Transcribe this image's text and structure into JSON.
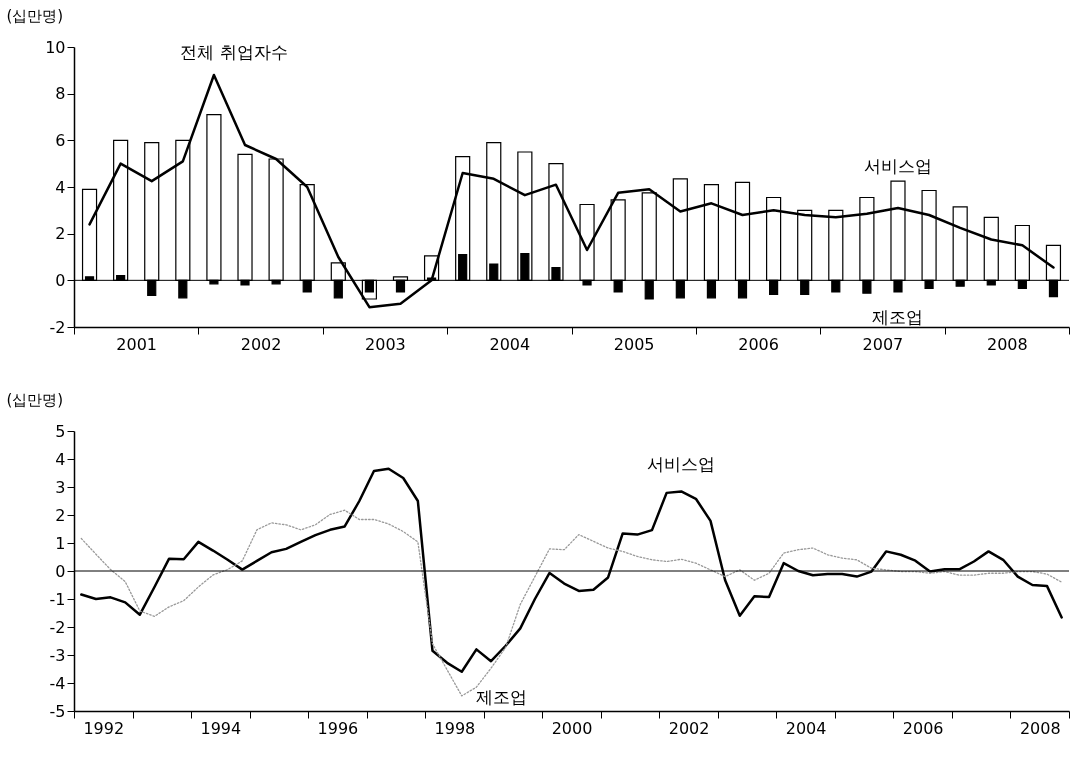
{
  "chart_data": [
    {
      "type": "bar",
      "ylabel": "(십만명)",
      "x": [
        2001.125,
        2001.375,
        2001.625,
        2001.875,
        2002.125,
        2002.375,
        2002.625,
        2002.875,
        2003.125,
        2003.375,
        2003.625,
        2003.875,
        2004.125,
        2004.375,
        2004.625,
        2004.875,
        2005.125,
        2005.375,
        2005.625,
        2005.875,
        2006.125,
        2006.375,
        2006.625,
        2006.875,
        2007.125,
        2007.375,
        2007.625,
        2007.875,
        2008.125,
        2008.375,
        2008.625,
        2008.875
      ],
      "xlim": [
        2001,
        2009
      ],
      "xticks": [
        {
          "value": 2001,
          "label": null
        },
        {
          "value": 2001.5,
          "label": "2001"
        },
        {
          "value": 2002,
          "label": null
        },
        {
          "value": 2002.5,
          "label": "2002"
        },
        {
          "value": 2003,
          "label": null
        },
        {
          "value": 2003.5,
          "label": "2003"
        },
        {
          "value": 2004,
          "label": null
        },
        {
          "value": 2004.5,
          "label": "2004"
        },
        {
          "value": 2005,
          "label": null
        },
        {
          "value": 2005.5,
          "label": "2005"
        },
        {
          "value": 2006,
          "label": null
        },
        {
          "value": 2006.5,
          "label": "2006"
        },
        {
          "value": 2007,
          "label": null
        },
        {
          "value": 2007.5,
          "label": "2007"
        },
        {
          "value": 2008,
          "label": null
        },
        {
          "value": 2008.5,
          "label": "2008"
        },
        {
          "value": 2009,
          "label": null
        }
      ],
      "ylim": [
        -2,
        10
      ],
      "yticks": [
        -2,
        0,
        2,
        4,
        6,
        8,
        10
      ],
      "ref_lines": [
        {
          "axis": "y",
          "value": 0
        }
      ],
      "series": [
        {
          "name": "서비스업",
          "color": "#ffffff",
          "values": [
            3.9,
            6.0,
            5.9,
            6.0,
            7.1,
            5.4,
            5.2,
            4.1,
            0.75,
            -0.8,
            0.15,
            1.05,
            5.3,
            5.9,
            5.5,
            5.0,
            3.25,
            3.45,
            3.75,
            4.35,
            4.1,
            4.2,
            3.55,
            3.0,
            3.0,
            3.55,
            4.25,
            3.85,
            3.15,
            2.7,
            2.35,
            1.5
          ]
        },
        {
          "name": "제조업",
          "color": "#000000",
          "values": [
            0.15,
            0.2,
            -0.65,
            -0.75,
            -0.15,
            -0.2,
            -0.15,
            -0.5,
            -0.75,
            -0.5,
            -0.5,
            0.1,
            1.1,
            0.7,
            1.15,
            0.55,
            -0.2,
            -0.5,
            -0.8,
            -0.75,
            -0.75,
            -0.75,
            -0.6,
            -0.6,
            -0.5,
            -0.55,
            -0.5,
            -0.35,
            -0.25,
            -0.2,
            -0.35,
            -0.7
          ]
        },
        {
          "name": "전체 취업자수",
          "type": "line",
          "color": "#000000",
          "values": [
            2.4,
            5.0,
            4.25,
            5.1,
            8.8,
            5.8,
            5.2,
            4.0,
            1.0,
            -1.15,
            -1.0,
            0.0,
            4.6,
            4.35,
            3.65,
            4.1,
            1.3,
            3.75,
            3.9,
            2.95,
            3.3,
            2.8,
            3.0,
            2.8,
            2.7,
            2.85,
            3.1,
            2.8,
            2.25,
            1.75,
            1.5,
            0.55
          ]
        }
      ]
    },
    {
      "type": "line",
      "ylabel": "(십만명)",
      "x": [
        1992.125,
        1992.375,
        1992.625,
        1992.875,
        1993.125,
        1993.375,
        1993.625,
        1993.875,
        1994.125,
        1994.375,
        1994.625,
        1994.875,
        1995.125,
        1995.375,
        1995.625,
        1995.875,
        1996.125,
        1996.375,
        1996.625,
        1996.875,
        1997.125,
        1997.375,
        1997.625,
        1997.875,
        1998.125,
        1998.375,
        1998.625,
        1998.875,
        1999.125,
        1999.375,
        1999.625,
        1999.875,
        2000.125,
        2000.375,
        2000.625,
        2000.875,
        2001.125,
        2001.375,
        2001.625,
        2001.875,
        2002.125,
        2002.375,
        2002.625,
        2002.875,
        2003.125,
        2003.375,
        2003.625,
        2003.875,
        2004.125,
        2004.375,
        2004.625,
        2004.875,
        2005.125,
        2005.375,
        2005.625,
        2005.875,
        2006.125,
        2006.375,
        2006.625,
        2006.875,
        2007.125,
        2007.375,
        2007.625,
        2007.875,
        2008.125,
        2008.375,
        2008.625,
        2008.875
      ],
      "xlim": [
        1992,
        2009
      ],
      "xticks": [
        {
          "value": 1992,
          "label": null
        },
        {
          "value": 1992.5,
          "label": "1992"
        },
        {
          "value": 1993,
          "label": null
        },
        {
          "value": 1994,
          "label": null
        },
        {
          "value": 1994.5,
          "label": "1994"
        },
        {
          "value": 1995,
          "label": null
        },
        {
          "value": 1996,
          "label": null
        },
        {
          "value": 1996.5,
          "label": "1996"
        },
        {
          "value": 1997,
          "label": null
        },
        {
          "value": 1998,
          "label": null
        },
        {
          "value": 1998.5,
          "label": "1998"
        },
        {
          "value": 1999,
          "label": null
        },
        {
          "value": 2000,
          "label": null
        },
        {
          "value": 2000.5,
          "label": "2000"
        },
        {
          "value": 2001,
          "label": null
        },
        {
          "value": 2002,
          "label": null
        },
        {
          "value": 2002.5,
          "label": "2002"
        },
        {
          "value": 2003,
          "label": null
        },
        {
          "value": 2004,
          "label": null
        },
        {
          "value": 2004.5,
          "label": "2004"
        },
        {
          "value": 2005,
          "label": null
        },
        {
          "value": 2006,
          "label": null
        },
        {
          "value": 2006.5,
          "label": "2006"
        },
        {
          "value": 2007,
          "label": null
        },
        {
          "value": 2008,
          "label": null
        },
        {
          "value": 2008.5,
          "label": "2008"
        },
        {
          "value": 2009,
          "label": null
        }
      ],
      "ylim": [
        -5,
        5
      ],
      "yticks": [
        -5,
        -4,
        -3,
        -2,
        -1,
        0,
        1,
        2,
        3,
        4,
        5
      ],
      "ref_lines": [
        {
          "axis": "y",
          "value": 0
        }
      ],
      "series": [
        {
          "name": "서비스업",
          "color": "#000000",
          "values": [
            -0.84,
            -1.0,
            -0.94,
            -1.12,
            -1.56,
            -0.57,
            0.44,
            0.42,
            1.04,
            0.73,
            0.4,
            0.05,
            0.36,
            0.67,
            0.79,
            1.04,
            1.28,
            1.47,
            1.59,
            2.5,
            3.57,
            3.65,
            3.32,
            2.5,
            -2.85,
            -3.28,
            -3.6,
            -2.8,
            -3.22,
            -2.67,
            -2.05,
            -1.0,
            -0.07,
            -0.45,
            -0.71,
            -0.67,
            -0.23,
            1.34,
            1.3,
            1.46,
            2.79,
            2.84,
            2.58,
            1.79,
            -0.33,
            -1.6,
            -0.9,
            -0.93,
            0.28,
            0.0,
            -0.15,
            -0.11,
            -0.11,
            -0.2,
            -0.02,
            0.7,
            0.58,
            0.37,
            -0.02,
            0.06,
            0.06,
            0.34,
            0.7,
            0.4,
            -0.2,
            -0.5,
            -0.54,
            -1.66
          ]
        },
        {
          "name": "제조업",
          "color": "#999999",
          "line_style": "dotted",
          "values": [
            1.16,
            0.6,
            0.05,
            -0.38,
            -1.43,
            -1.62,
            -1.28,
            -1.06,
            -0.57,
            -0.14,
            0.05,
            0.36,
            1.47,
            1.72,
            1.65,
            1.47,
            1.65,
            2.02,
            2.17,
            1.84,
            1.84,
            1.68,
            1.41,
            1.04,
            -2.6,
            -3.53,
            -4.46,
            -4.15,
            -3.47,
            -2.73,
            -1.19,
            -0.2,
            0.79,
            0.76,
            1.3,
            1.06,
            0.82,
            0.7,
            0.52,
            0.4,
            0.34,
            0.42,
            0.28,
            0.04,
            -0.2,
            0.04,
            -0.33,
            -0.08,
            0.64,
            0.76,
            0.82,
            0.58,
            0.46,
            0.4,
            0.1,
            0.04,
            -0.02,
            -0.02,
            -0.08,
            -0.02,
            -0.15,
            -0.15,
            -0.08,
            -0.08,
            -0.02,
            -0.02,
            -0.11,
            -0.4
          ]
        }
      ]
    }
  ]
}
